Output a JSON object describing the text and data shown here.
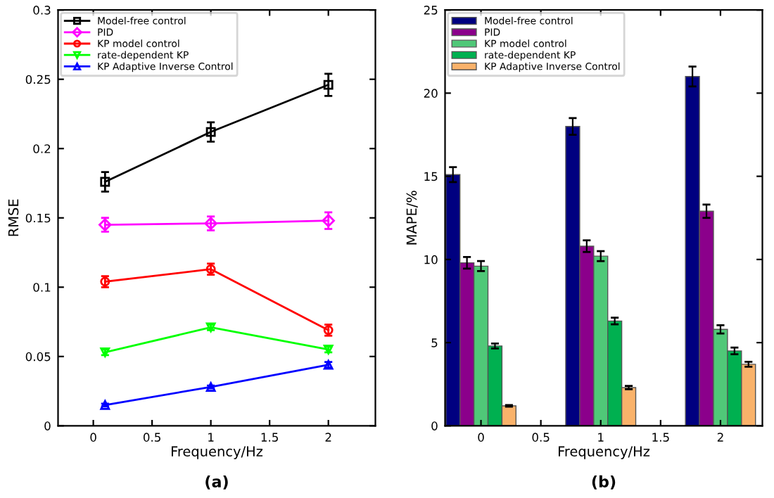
{
  "chart_data": [
    {
      "type": "line",
      "xlabel": "Frequency/Hz",
      "ylabel": "RMSE",
      "x": [
        0.1,
        1,
        2
      ],
      "xlim": [
        -0.3,
        2.4
      ],
      "ylim": [
        0,
        0.3
      ],
      "xticks": [
        0,
        0.5,
        1,
        1.5,
        2
      ],
      "yticks": [
        0,
        0.05,
        0.1,
        0.15,
        0.2,
        0.25,
        0.3
      ],
      "grid": false,
      "legend": "top left",
      "line_style": "solid",
      "annotations": [
        "(a)"
      ],
      "series": [
        {
          "name": "Model-free control",
          "color": "#000000",
          "marker": "square",
          "values": [
            0.176,
            0.212,
            0.246
          ],
          "errors": [
            0.007,
            0.007,
            0.008
          ]
        },
        {
          "name": "PID",
          "color": "#ff00ff",
          "marker": "diamond",
          "values": [
            0.145,
            0.146,
            0.148
          ],
          "errors": [
            0.005,
            0.005,
            0.006
          ]
        },
        {
          "name": "KP model control",
          "color": "#ff0000",
          "marker": "circle",
          "values": [
            0.104,
            0.113,
            0.069
          ],
          "errors": [
            0.004,
            0.004,
            0.004
          ]
        },
        {
          "name": "rate-dependent KP",
          "color": "#00ff00",
          "marker": "triangle_down",
          "values": [
            0.053,
            0.071,
            0.055
          ],
          "errors": [
            0.002,
            0.002,
            0.002
          ]
        },
        {
          "name": "KP Adaptive Inverse Control",
          "color": "#0000ff",
          "marker": "triangle",
          "values": [
            0.015,
            0.028,
            0.044
          ],
          "errors": [
            0.001,
            0.001,
            0.002
          ]
        }
      ]
    },
    {
      "type": "bar",
      "xlabel": "Frequency/Hz",
      "ylabel": "MAPE/%",
      "x": [
        0,
        1,
        2
      ],
      "xlim": [
        -0.3,
        2.35
      ],
      "ylim": [
        0,
        25
      ],
      "xticks": [
        0,
        0.5,
        1,
        1.5,
        2
      ],
      "yticks": [
        0,
        5,
        10,
        15,
        20,
        25
      ],
      "grid": false,
      "legend": "top left",
      "annotations": [
        "(b)"
      ],
      "series": [
        {
          "name": "Model-free control",
          "color": "#000080",
          "values": [
            15.1,
            18.0,
            21.0
          ],
          "errors": [
            0.45,
            0.5,
            0.6
          ]
        },
        {
          "name": "PID",
          "color": "#8b008b",
          "values": [
            9.8,
            10.8,
            12.9
          ],
          "errors": [
            0.35,
            0.35,
            0.4
          ]
        },
        {
          "name": "KP model control",
          "color": "#50c878",
          "values": [
            9.6,
            10.2,
            5.8
          ],
          "errors": [
            0.3,
            0.3,
            0.25
          ]
        },
        {
          "name": "rate-dependent KP",
          "color": "#00b050",
          "values": [
            4.8,
            6.3,
            4.5
          ],
          "errors": [
            0.15,
            0.2,
            0.2
          ]
        },
        {
          "name": "KP Adaptive Inverse Control",
          "color": "#f9b26a",
          "values": [
            1.2,
            2.3,
            3.7
          ],
          "errors": [
            0.05,
            0.1,
            0.15
          ]
        }
      ]
    }
  ]
}
